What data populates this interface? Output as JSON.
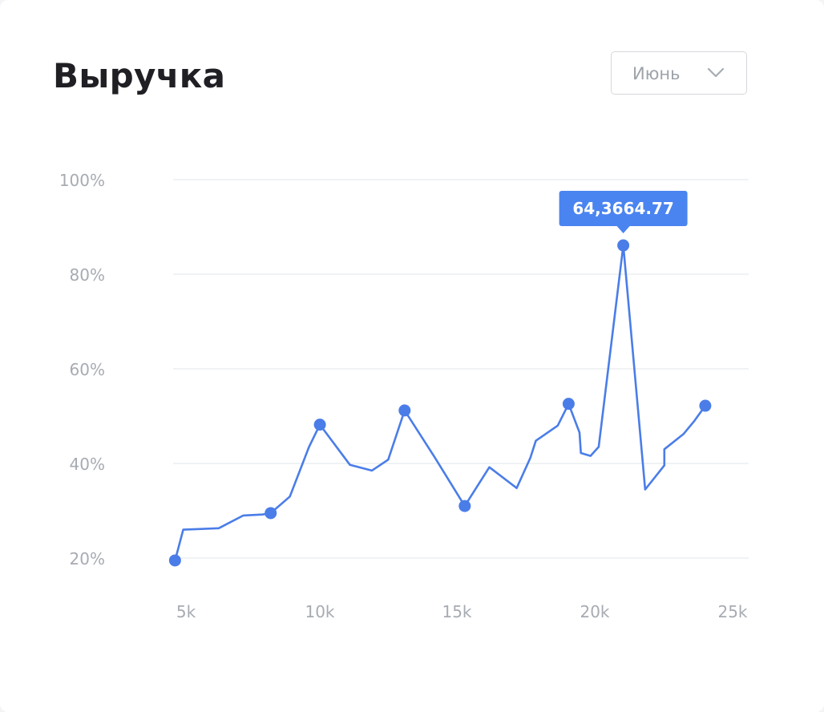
{
  "header": {
    "title": "Выручка",
    "month_select": {
      "value": "Июнь",
      "icon": "chevron-down-icon"
    }
  },
  "colors": {
    "line": "#4a7de8",
    "grid": "#ebedf0",
    "tick": "#a7abb2",
    "tooltip_bg": "#4a84f0"
  },
  "tooltip": {
    "text": "64,3664.77"
  },
  "chart_data": {
    "type": "line",
    "title": "Выручка",
    "xlabel": "",
    "ylabel": "",
    "x_ticks": [
      "5k",
      "10k",
      "15k",
      "20k",
      "25k"
    ],
    "y_ticks": [
      "100%",
      "80%",
      "60%",
      "40%",
      "20%"
    ],
    "xlim": [
      5000,
      25000
    ],
    "ylim": [
      20,
      100
    ],
    "grid": true,
    "series": [
      {
        "points": [
          [
            4600,
            19.5
          ],
          [
            4900,
            26
          ],
          [
            6200,
            26.3
          ],
          [
            7100,
            29
          ],
          [
            7800,
            29.2
          ],
          [
            8100,
            29.5
          ],
          [
            8800,
            33
          ],
          [
            9500,
            43.5
          ],
          [
            9900,
            48.2
          ],
          [
            11000,
            39.7
          ],
          [
            11800,
            38.5
          ],
          [
            12400,
            40.8
          ],
          [
            13000,
            51.2
          ],
          [
            14100,
            41.3
          ],
          [
            15200,
            31
          ],
          [
            16100,
            39.2
          ],
          [
            17100,
            34.8
          ],
          [
            17600,
            41.2
          ],
          [
            17800,
            44.8
          ],
          [
            18600,
            48
          ],
          [
            19000,
            52.6
          ],
          [
            19400,
            46.5
          ],
          [
            19450,
            42.2
          ],
          [
            19800,
            41.6
          ],
          [
            20100,
            43.5
          ],
          [
            21000,
            86.1
          ],
          [
            21800,
            34.5
          ],
          [
            22500,
            39.6
          ],
          [
            22500,
            43
          ],
          [
            23200,
            46.2
          ],
          [
            23600,
            49
          ],
          [
            24000,
            52.2
          ]
        ],
        "markers": [
          [
            4600,
            19.5
          ],
          [
            8100,
            29.5
          ],
          [
            9900,
            48.2
          ],
          [
            13000,
            51.2
          ],
          [
            15200,
            31
          ],
          [
            19000,
            52.6
          ],
          [
            21000,
            86.1
          ],
          [
            24000,
            52.2
          ]
        ]
      }
    ]
  }
}
